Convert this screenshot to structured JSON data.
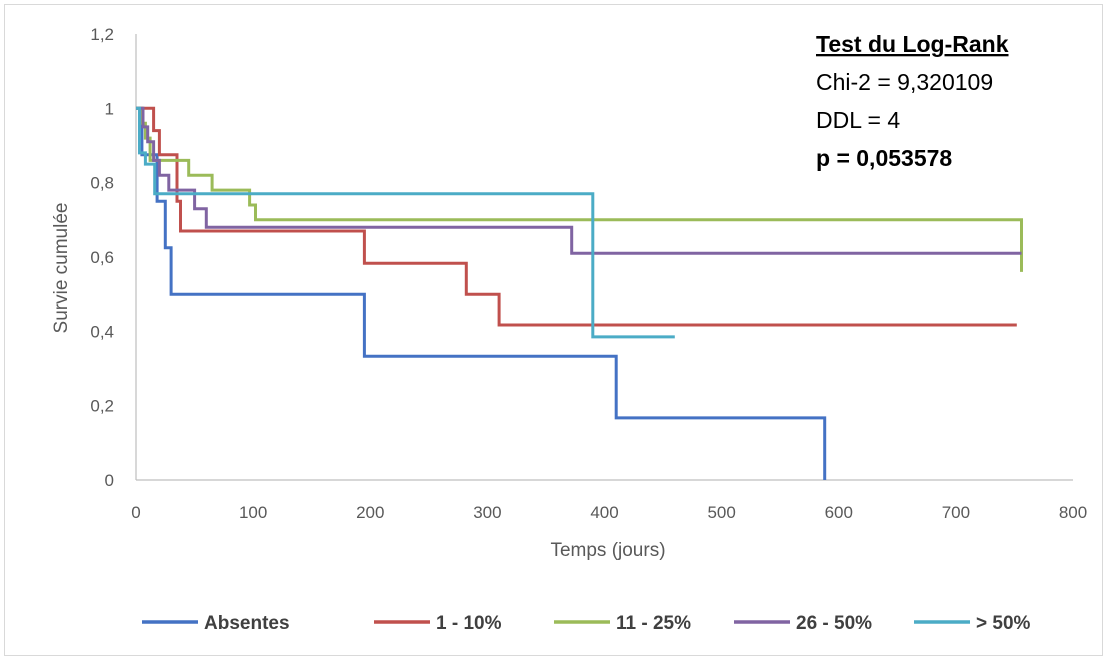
{
  "chart_data": {
    "type": "line",
    "step": true,
    "title": "",
    "xlabel": "Temps (jours)",
    "ylabel": "Survie cumulée",
    "xlim": [
      0,
      800
    ],
    "ylim": [
      0,
      1.2
    ],
    "xticks": [
      0,
      100,
      200,
      300,
      400,
      500,
      600,
      700,
      800
    ],
    "xtick_labels": [
      "0",
      "100",
      "200",
      "300",
      "400",
      "500",
      "600",
      "700",
      "800"
    ],
    "yticks": [
      0,
      0.2,
      0.4,
      0.6,
      0.8,
      1,
      1.2
    ],
    "ytick_labels": [
      "0",
      "0,2",
      "0,4",
      "0,6",
      "0,8",
      "1",
      "1,2"
    ],
    "grid": false,
    "legend_position": "bottom",
    "annotations": {
      "heading": "Test du Log-Rank",
      "chi2": "Chi-2 = 9,320109",
      "ddl": "DDL = 4",
      "pvalue": "p = 0,053578"
    },
    "series": [
      {
        "name": "Absentes",
        "color": "#4472C4",
        "x": [
          0,
          5,
          10,
          18,
          25,
          30,
          195,
          410,
          588,
          588
        ],
        "y": [
          1,
          0.875,
          0.875,
          0.75,
          0.625,
          0.5,
          0.333,
          0.167,
          0.167,
          0
        ]
      },
      {
        "name": "1 - 10%",
        "color": "#C0504D",
        "x": [
          0,
          12,
          15,
          20,
          35,
          38,
          195,
          282,
          310,
          752
        ],
        "y": [
          1,
          1,
          0.94,
          0.875,
          0.75,
          0.67,
          0.583,
          0.5,
          0.417,
          0.417
        ]
      },
      {
        "name": "11 - 25%",
        "color": "#9BBB59",
        "x": [
          0,
          5,
          8,
          12,
          45,
          65,
          97,
          102,
          756,
          756
        ],
        "y": [
          1,
          0.96,
          0.92,
          0.86,
          0.82,
          0.78,
          0.74,
          0.7,
          0.7,
          0.56
        ]
      },
      {
        "name": "26 - 50%",
        "color": "#8064A2",
        "x": [
          0,
          6,
          10,
          15,
          20,
          28,
          50,
          60,
          372,
          756
        ],
        "y": [
          1,
          0.95,
          0.91,
          0.86,
          0.82,
          0.78,
          0.73,
          0.68,
          0.61,
          0.61
        ]
      },
      {
        "name": "> 50%",
        "color": "#4BACC6",
        "x": [
          0,
          3,
          8,
          16,
          390,
          460
        ],
        "y": [
          1,
          0.88,
          0.85,
          0.77,
          0.385,
          0.385
        ]
      }
    ]
  }
}
